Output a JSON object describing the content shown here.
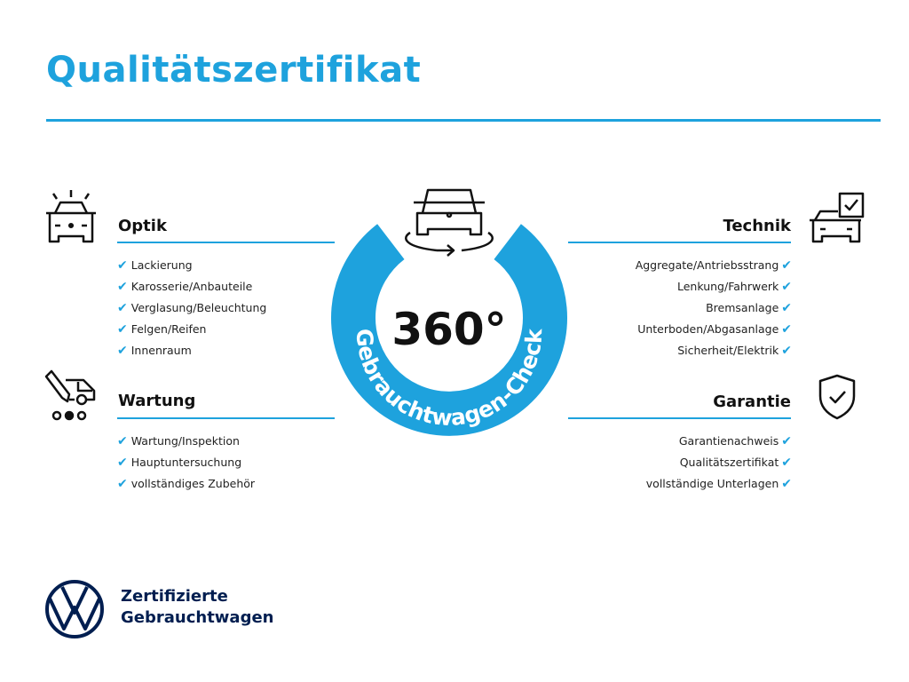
{
  "title": "Qualitätszertifikat",
  "center": {
    "big": "360°",
    "ring_text": "Gebrauchtwagen-Check"
  },
  "sections": {
    "optik": {
      "title": "Optik",
      "items": [
        "Lackierung",
        "Karosserie/Anbauteile",
        "Verglasung/Beleuchtung",
        "Felgen/Reifen",
        "Innenraum"
      ]
    },
    "wartung": {
      "title": "Wartung",
      "items": [
        "Wartung/Inspektion",
        "Hauptuntersuchung",
        "vollständiges Zubehör"
      ]
    },
    "technik": {
      "title": "Technik",
      "items": [
        "Aggregate/Antriebsstrang",
        "Lenkung/Fahrwerk",
        "Bremsanlage",
        "Unterboden/Abgasanlage",
        "Sicherheit/Elektrik"
      ]
    },
    "garantie": {
      "title": "Garantie",
      "items": [
        "Garantienachweis",
        "Qualitätszertifikat",
        "vollständige Unterlagen"
      ]
    }
  },
  "check_glyph": "✔",
  "brand": {
    "line1": "Zertifizierte",
    "line2": "Gebrauchtwagen",
    "logo": "VW"
  },
  "colors": {
    "accent": "#1ea2dd",
    "brand_navy": "#001e50"
  }
}
